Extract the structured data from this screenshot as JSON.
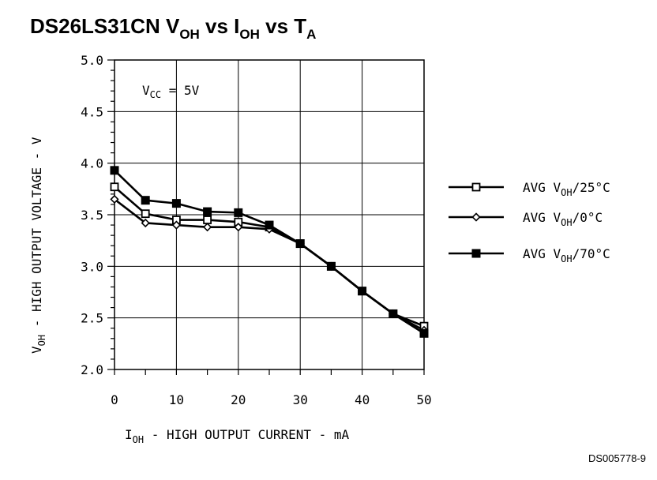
{
  "chart_data": {
    "type": "line",
    "title": {
      "main": "DS26LS31CN V",
      "sub1": "OH",
      "mid1": " vs I",
      "sub2": "OH",
      "mid2": " vs T",
      "sub3": "A"
    },
    "annotation": {
      "prefix": "V",
      "sub": "CC",
      "suffix": " = 5V"
    },
    "ylabel": {
      "prefix": "V",
      "sub": "OH",
      "suffix": " - HIGH OUTPUT VOLTAGE - V"
    },
    "xlabel": {
      "prefix": "I",
      "sub": "OH",
      "suffix": " - HIGH OUTPUT CURRENT - mA"
    },
    "xlim": [
      0,
      50
    ],
    "ylim": [
      2.0,
      5.0
    ],
    "x_ticks": [
      0,
      10,
      20,
      30,
      40,
      50
    ],
    "y_ticks": [
      "2.0",
      "2.5",
      "3.0",
      "3.5",
      "4.0",
      "4.5",
      "5.0"
    ],
    "grid": true,
    "legend_position": "right",
    "x": [
      0,
      5,
      10,
      15,
      20,
      25,
      30,
      35,
      40,
      45,
      50
    ],
    "series": [
      {
        "prefix": "AVG V",
        "sub": "OH",
        "suffix": "/25°C",
        "marker": "open-square",
        "values": [
          3.77,
          3.51,
          3.45,
          3.45,
          3.43,
          3.38,
          3.22,
          3.0,
          2.76,
          2.54,
          2.42
        ]
      },
      {
        "prefix": "AVG V",
        "sub": "OH",
        "suffix": "/0°C",
        "marker": "open-diamond",
        "values": [
          3.65,
          3.42,
          3.4,
          3.38,
          3.38,
          3.36,
          3.22,
          3.0,
          2.76,
          2.54,
          2.38
        ]
      },
      {
        "prefix": "AVG V",
        "sub": "OH",
        "suffix": "/70°C",
        "marker": "filled-square",
        "values": [
          3.93,
          3.64,
          3.61,
          3.53,
          3.52,
          3.4,
          3.22,
          3.0,
          2.76,
          2.54,
          2.35
        ]
      }
    ],
    "figure_id": "DS005778-9"
  }
}
